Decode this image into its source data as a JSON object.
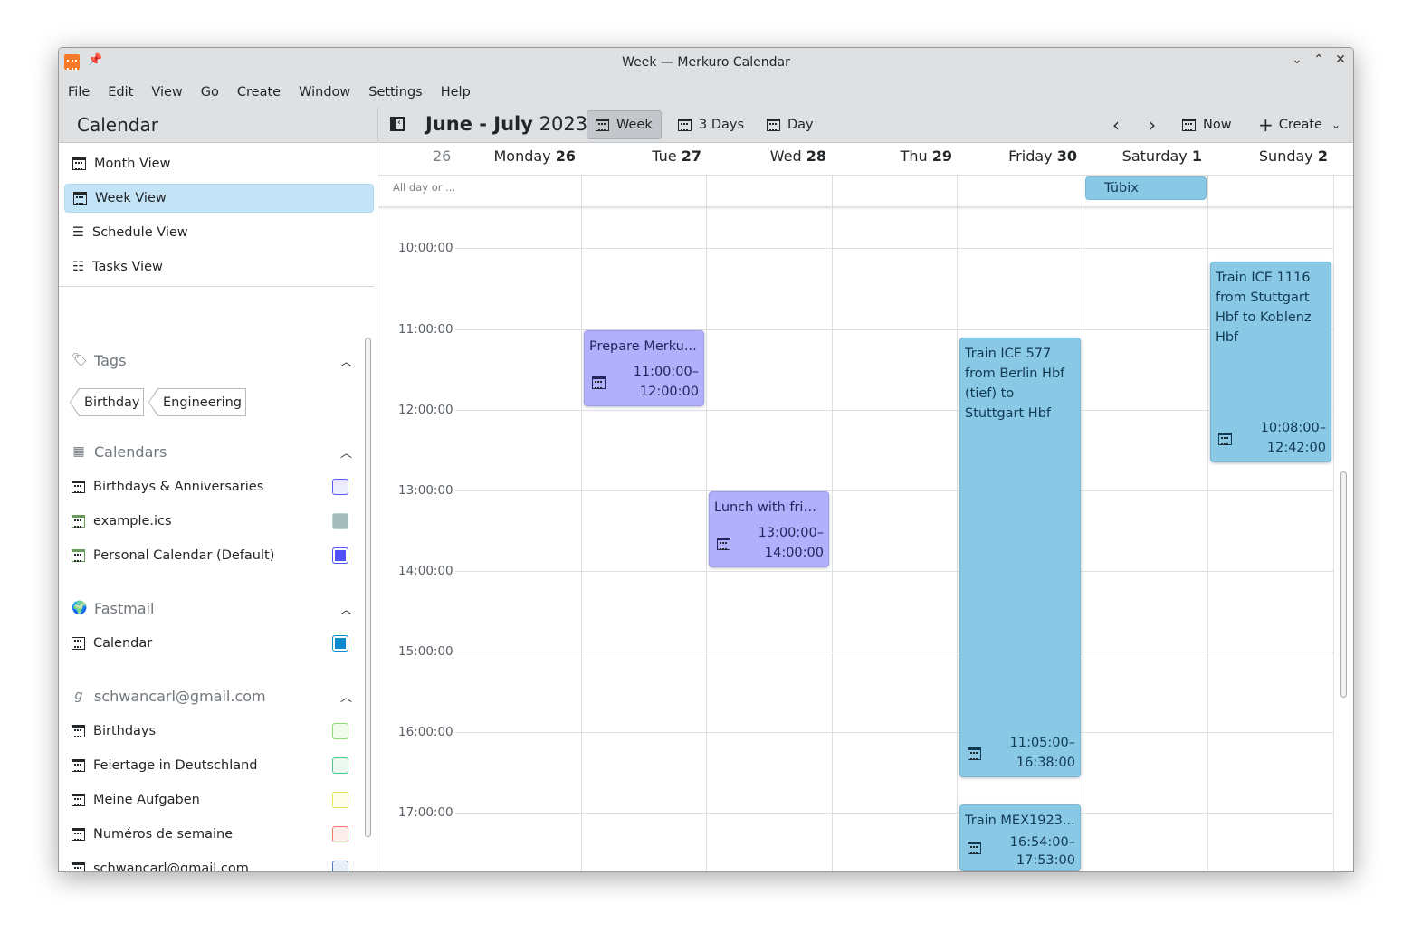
{
  "window": {
    "title": "Week — Merkuro Calendar"
  },
  "menu": [
    "File",
    "Edit",
    "View",
    "Go",
    "Create",
    "Window",
    "Settings",
    "Help"
  ],
  "toolbar": {
    "sidebar_title": "Calendar",
    "range_bold": "June - July",
    "range_year": "2023",
    "week": "Week",
    "three_days": "3 Days",
    "day": "Day",
    "now": "Now",
    "create": "Create"
  },
  "sidebar": {
    "views": [
      "Month View",
      "Week View",
      "Schedule View",
      "Tasks View"
    ],
    "selected_view": "Week View",
    "tags_header": "Tags",
    "tags": [
      "Birthday",
      "Engineering"
    ],
    "calendars_header": "Calendars",
    "calendars": [
      {
        "name": "Birthdays & Anniversaries",
        "color": "#5b5bf0"
      },
      {
        "name": "example.ics",
        "color": "#9fbcbc"
      },
      {
        "name": "Personal Calendar (Default)",
        "color": "#5252fa"
      }
    ],
    "fastmail_header": "Fastmail",
    "fastmail": [
      {
        "name": "Calendar",
        "color": "#0a8bd0"
      }
    ],
    "gmail_header": "schwancarl@gmail.com",
    "gmail": [
      {
        "name": "Birthdays",
        "color": "#8fe06b"
      },
      {
        "name": "Feiertage in Deutschland",
        "color": "#4cc38a"
      },
      {
        "name": "Meine Aufgaben",
        "color": "#e6e64c"
      },
      {
        "name": "Numéros de semaine",
        "color": "#f07a6a"
      },
      {
        "name": "schwancarl@gmail.com",
        "color": "#5a7ad0"
      }
    ]
  },
  "week": {
    "week_number": "26",
    "days": [
      {
        "name": "Monday",
        "num": "26"
      },
      {
        "name": "Tue",
        "num": "27"
      },
      {
        "name": "Wed",
        "num": "28"
      },
      {
        "name": "Thu",
        "num": "29"
      },
      {
        "name": "Friday",
        "num": "30"
      },
      {
        "name": "Saturday",
        "num": "1"
      },
      {
        "name": "Sunday",
        "num": "2"
      }
    ],
    "all_day_label": "All day or ...",
    "times": [
      "10:00:00",
      "11:00:00",
      "12:00:00",
      "13:00:00",
      "14:00:00",
      "15:00:00",
      "16:00:00",
      "17:00:00"
    ],
    "all_day_events": [
      {
        "title": "Tübix",
        "day": "Saturday 1"
      }
    ],
    "events": [
      {
        "title": "Prepare Merku...",
        "start": "11:00:00–",
        "end": "12:00:00"
      },
      {
        "title": "Lunch with frie...",
        "start": "13:00:00–",
        "end": "14:00:00"
      },
      {
        "title": "Train ICE 577 from Berlin Hbf (tief) to Stuttgart Hbf",
        "start": "11:05:00–",
        "end": "16:38:00"
      },
      {
        "title": "Train ICE 1116 from Stuttgart Hbf to Koblenz Hbf",
        "start": "10:08:00–",
        "end": "12:42:00"
      },
      {
        "title": "Train MEX1923...",
        "start": "16:54:00–",
        "end": "17:53:00"
      }
    ]
  }
}
